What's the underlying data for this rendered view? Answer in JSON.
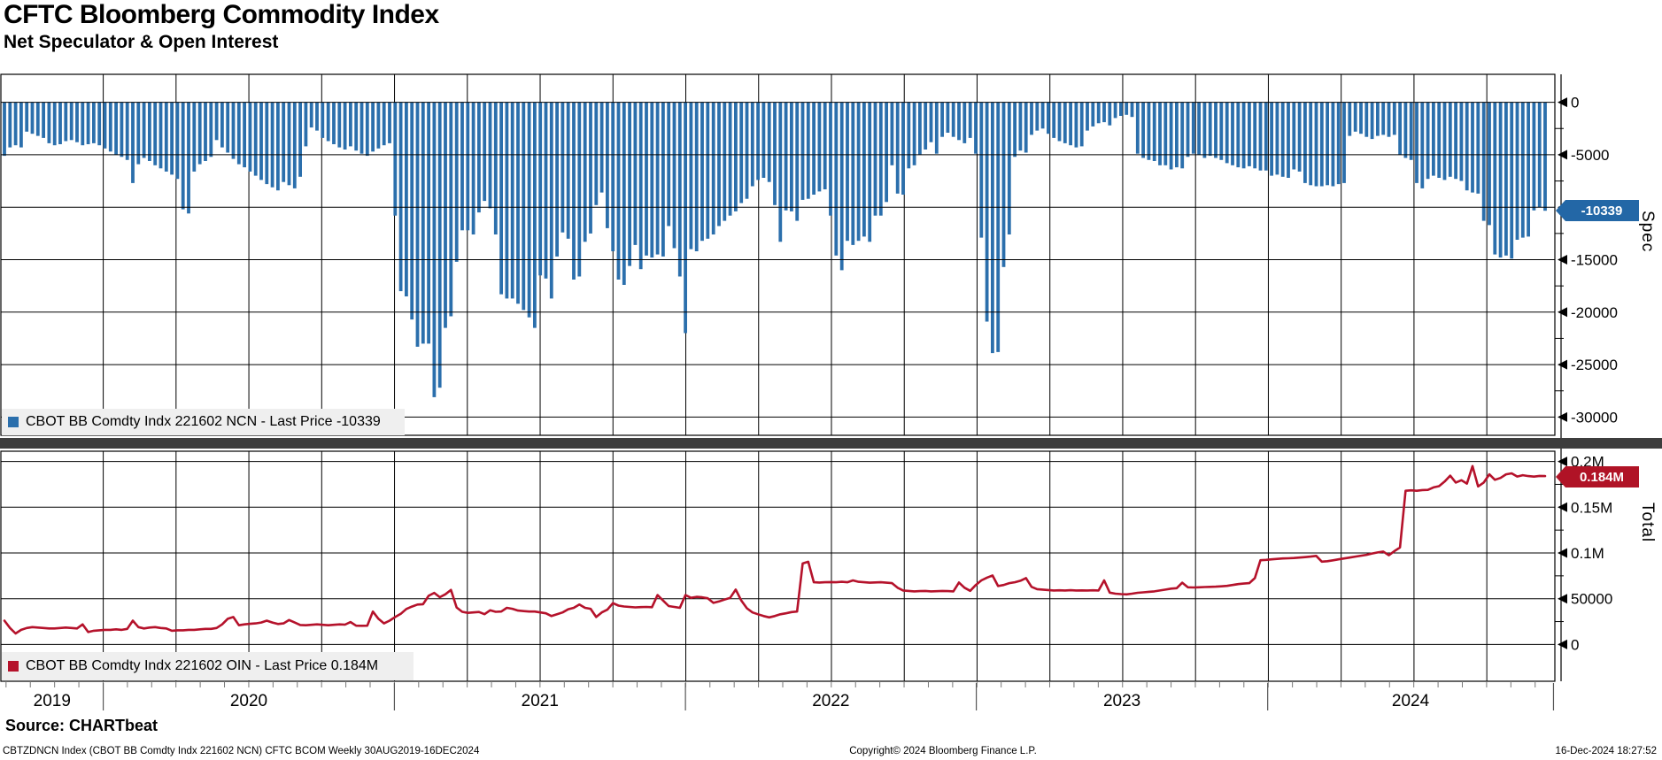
{
  "header": {
    "title": "CFTC Bloomberg Commodity Index",
    "subtitle": "Net Speculator & Open Interest"
  },
  "colors": {
    "bar_blue": "#2b6fac",
    "tag_blue": "#2367a6",
    "line_red": "#b5122b",
    "tag_red": "#b01326",
    "legend_bg": "#efefef",
    "separator": "#3d3d3d",
    "grid": "#000000",
    "background": "#ffffff"
  },
  "panels": {
    "spec": {
      "axis_label": "Spec",
      "legend": "CBOT BB Comdty Indx 221602 NCN - Last Price -10339",
      "last_price_label": "-10339",
      "ticks": [
        {
          "value": 0,
          "label": "0"
        },
        {
          "value": -5000,
          "label": "-5000"
        },
        {
          "value": -10000,
          "label": ""
        },
        {
          "value": -15000,
          "label": "-15000"
        },
        {
          "value": -20000,
          "label": "-20000"
        },
        {
          "value": -25000,
          "label": "-25000"
        },
        {
          "value": -30000,
          "label": "-30000"
        }
      ]
    },
    "total": {
      "axis_label": "Total",
      "legend": "CBOT BB Comdty Indx 221602 OIN - Last Price 0.184M",
      "last_price_label": "0.184M",
      "ticks": [
        {
          "value": 200000,
          "label": "0.2M"
        },
        {
          "value": 150000,
          "label": "0.15M"
        },
        {
          "value": 100000,
          "label": "0.1M"
        },
        {
          "value": 50000,
          "label": "50000"
        },
        {
          "value": 0,
          "label": "0"
        }
      ]
    }
  },
  "x_axis": {
    "years": [
      "2019",
      "2020",
      "2021",
      "2022",
      "2023",
      "2024"
    ],
    "start": "30AUG2019",
    "end": "16DEC2024",
    "frequency": "Weekly"
  },
  "footer": {
    "source": "Source: CHARTbeat",
    "left": "CBTZDNCN Index (CBOT BB Comdty Indx 221602 NCN) CFTC BCOM  Weekly 30AUG2019-16DEC2024",
    "center": "Copyright© 2024 Bloomberg Finance L.P.",
    "right": "16-Dec-2024 18:27:52"
  },
  "chart_data": [
    {
      "type": "bar",
      "name": "CBOT BB Comdty Indx 221602 NCN",
      "panel": "Spec",
      "freq": "weekly",
      "x_start": "30AUG2019",
      "x_end": "16DEC2024",
      "ylim": [
        -31750,
        2650
      ],
      "yticks": [
        0,
        -5000,
        -10000,
        -15000,
        -20000,
        -25000,
        -30000
      ],
      "last_price": -10339,
      "values": [
        -5100,
        -4300,
        -4100,
        -4300,
        -2800,
        -3000,
        -3200,
        -3400,
        -3900,
        -4100,
        -4000,
        -3700,
        -3600,
        -3800,
        -4100,
        -4000,
        -3900,
        -4100,
        -4400,
        -4700,
        -5000,
        -5200,
        -5500,
        -7700,
        -5900,
        -5300,
        -5600,
        -6000,
        -6300,
        -6600,
        -6900,
        -7300,
        -10200,
        -10600,
        -6600,
        -5900,
        -5600,
        -5200,
        -3600,
        -4300,
        -4800,
        -5400,
        -5900,
        -6200,
        -6600,
        -7000,
        -7400,
        -7800,
        -8100,
        -8400,
        -7600,
        -7900,
        -8200,
        -7100,
        -4200,
        -2400,
        -2700,
        -3400,
        -3700,
        -4000,
        -4300,
        -4500,
        -4200,
        -4600,
        -4900,
        -5100,
        -4700,
        -4400,
        -4100,
        -3900,
        -10800,
        -18000,
        -18500,
        -20700,
        -23300,
        -23000,
        -23000,
        -28100,
        -27200,
        -21500,
        -20400,
        -15200,
        -12200,
        -12200,
        -12600,
        -10500,
        -9400,
        -10100,
        -12600,
        -18300,
        -18700,
        -18700,
        -19200,
        -19800,
        -20500,
        -21500,
        -16500,
        -16800,
        -18700,
        -14700,
        -12400,
        -13000,
        -16900,
        -16600,
        -13300,
        -12500,
        -9800,
        -8600,
        -12000,
        -14200,
        -16900,
        -17400,
        -15600,
        -13600,
        -15900,
        -14600,
        -14800,
        -14500,
        -14700,
        -11800,
        -13900,
        -16600,
        -22000,
        -14000,
        -14200,
        -13200,
        -13000,
        -12600,
        -11800,
        -11300,
        -10800,
        -10400,
        -9600,
        -9200,
        -8000,
        -7400,
        -7200,
        -7600,
        -9800,
        -13300,
        -10300,
        -10400,
        -11300,
        -9300,
        -9200,
        -8800,
        -8500,
        -8300,
        -10800,
        -14600,
        -16000,
        -13200,
        -13600,
        -13200,
        -12800,
        -13300,
        -10800,
        -10800,
        -9500,
        -6000,
        -8700,
        -8800,
        -6300,
        -6000,
        -5000,
        -4500,
        -3800,
        -4900,
        -3300,
        -2900,
        -3300,
        -3600,
        -3900,
        -3400,
        -4900,
        -12900,
        -20900,
        -23900,
        -23800,
        -15700,
        -12600,
        -5200,
        -4600,
        -4800,
        -3100,
        -2700,
        -2500,
        -3000,
        -3400,
        -3700,
        -3900,
        -4100,
        -4300,
        -4200,
        -2700,
        -2300,
        -2000,
        -1900,
        -2200,
        -1500,
        -1300,
        -1200,
        -1400,
        -4900,
        -5300,
        -5500,
        -5600,
        -6000,
        -6000,
        -6400,
        -6200,
        -6300,
        -5200,
        -4900,
        -5000,
        -5300,
        -5100,
        -5300,
        -5500,
        -5800,
        -6000,
        -6200,
        -6300,
        -6100,
        -6300,
        -6500,
        -6500,
        -7000,
        -6900,
        -7100,
        -7200,
        -6400,
        -6600,
        -7700,
        -7900,
        -8000,
        -8000,
        -7900,
        -8000,
        -7800,
        -7700,
        -3200,
        -2800,
        -3000,
        -3300,
        -3500,
        -3200,
        -3100,
        -3300,
        -3100,
        -5000,
        -5300,
        -5500,
        -7700,
        -8200,
        -7300,
        -7000,
        -7200,
        -7400,
        -7100,
        -7300,
        -7500,
        -8400,
        -8600,
        -8700,
        -11300,
        -11700,
        -14500,
        -14800,
        -14600,
        -14900,
        -13100,
        -12900,
        -12800,
        -10300,
        -10000,
        -10339
      ]
    },
    {
      "type": "line",
      "name": "CBOT BB Comdty Indx 221602 OIN",
      "panel": "Total",
      "freq": "weekly",
      "x_start": "30AUG2019",
      "x_end": "16DEC2024",
      "ylim": [
        -40000,
        211000
      ],
      "yticks": [
        200000,
        150000,
        100000,
        50000,
        0
      ],
      "last_price": 184000,
      "last_price_label": "0.184M",
      "values": [
        26000,
        18000,
        12000,
        16000,
        18000,
        19000,
        18500,
        18000,
        17500,
        17500,
        18000,
        18500,
        18000,
        17500,
        22000,
        13500,
        15000,
        15500,
        16000,
        16000,
        16500,
        16000,
        17000,
        26000,
        19000,
        17500,
        18500,
        19000,
        18000,
        17500,
        15000,
        15500,
        15500,
        16000,
        16000,
        16500,
        17000,
        17000,
        18000,
        22000,
        28000,
        30000,
        21000,
        22000,
        22500,
        23000,
        24000,
        26000,
        24000,
        22300,
        23000,
        26700,
        24000,
        21300,
        21000,
        21500,
        22000,
        21500,
        21000,
        21500,
        22000,
        21700,
        24500,
        20500,
        20400,
        20500,
        36000,
        28000,
        23000,
        26000,
        30000,
        33500,
        38800,
        41400,
        43600,
        44000,
        53200,
        56400,
        51600,
        54800,
        59600,
        40400,
        35700,
        34500,
        35000,
        35500,
        33100,
        37300,
        35700,
        36000,
        40000,
        39000,
        37000,
        36500,
        36000,
        36000,
        35000,
        34000,
        31000,
        33000,
        35000,
        38500,
        40000,
        43600,
        40000,
        39000,
        30000,
        35000,
        38000,
        45200,
        42500,
        41500,
        41000,
        40500,
        40800,
        41000,
        40700,
        54000,
        48000,
        42000,
        41000,
        40000,
        54000,
        51000,
        52000,
        51500,
        50500,
        45500,
        47000,
        49000,
        51000,
        60000,
        48000,
        39600,
        35000,
        33000,
        31000,
        29600,
        31000,
        33000,
        34000,
        35400,
        36000,
        88500,
        90400,
        68000,
        67700,
        68000,
        68200,
        68000,
        68500,
        68000,
        70000,
        68500,
        68000,
        67500,
        67800,
        68000,
        67500,
        67000,
        62000,
        59000,
        58500,
        58000,
        58300,
        58500,
        58000,
        58200,
        58500,
        58300,
        58000,
        67700,
        62000,
        58600,
        65000,
        70000,
        73000,
        75400,
        63800,
        65000,
        67000,
        68000,
        69600,
        72500,
        63000,
        60400,
        60000,
        59500,
        59000,
        59200,
        59000,
        59300,
        59000,
        59100,
        59000,
        59200,
        59000,
        70000,
        56700,
        55500,
        55000,
        54700,
        55500,
        56500,
        57000,
        57500,
        58000,
        59000,
        60000,
        61000,
        61500,
        67500,
        62500,
        62300,
        62500,
        62800,
        63000,
        63200,
        63500,
        64000,
        65000,
        66000,
        66500,
        67000,
        72500,
        92100,
        92500,
        93000,
        93500,
        94000,
        94200,
        94500,
        95000,
        95500,
        96000,
        96800,
        90500,
        91000,
        92000,
        93000,
        94000,
        95000,
        96000,
        97000,
        98000,
        99400,
        100600,
        101500,
        97500,
        102000,
        106000,
        168000,
        168500,
        168000,
        168800,
        169000,
        171700,
        173000,
        178000,
        184500,
        177000,
        179500,
        175800,
        195000,
        172700,
        177000,
        186000,
        180000,
        182000,
        186000,
        187000,
        183600,
        185000,
        184000,
        183500,
        184200,
        184000
      ]
    }
  ]
}
